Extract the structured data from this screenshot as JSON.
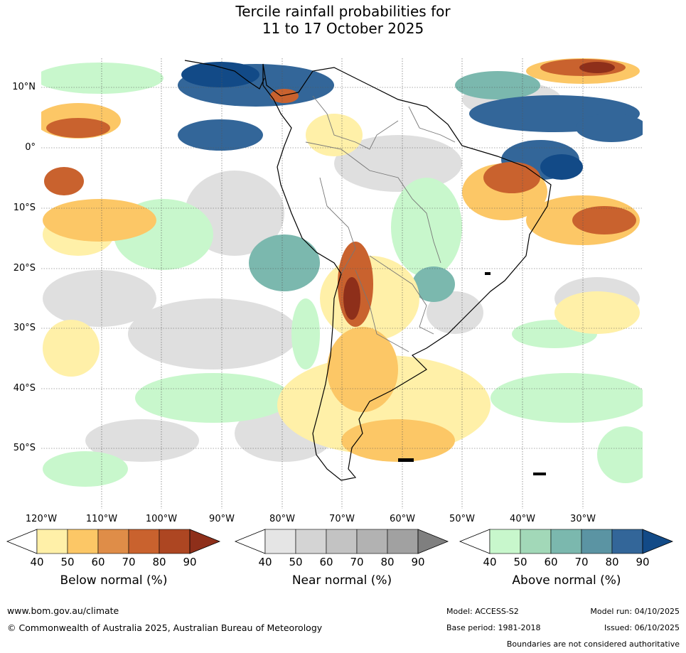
{
  "title_line1": "Tercile rainfall probabilities for",
  "title_line2": "11 to 17 October 2025",
  "map": {
    "lon_labels": [
      "120°W",
      "110°W",
      "100°W",
      "90°W",
      "80°W",
      "70°W",
      "60°W",
      "50°W",
      "40°W",
      "30°W"
    ],
    "lat_labels": [
      "10°N",
      "0°",
      "10°S",
      "20°S",
      "30°S",
      "40°S",
      "50°S"
    ]
  },
  "colorbars": [
    {
      "title": "Below normal (%)",
      "ticks": [
        "40",
        "50",
        "60",
        "70",
        "80",
        "90"
      ],
      "colors": [
        "#fff0a8",
        "#fcc766",
        "#df8d48",
        "#c9622e",
        "#ad4622",
        "#8e2f1a"
      ]
    },
    {
      "title": "Near normal (%)",
      "ticks": [
        "40",
        "50",
        "60",
        "70",
        "80",
        "90"
      ],
      "colors": [
        "#e5e5e5",
        "#d4d4d4",
        "#c3c3c3",
        "#b2b2b2",
        "#a1a1a1",
        "#7f7f7f"
      ]
    },
    {
      "title": "Above normal (%)",
      "ticks": [
        "40",
        "50",
        "60",
        "70",
        "80",
        "90"
      ],
      "colors": [
        "#c8f7cc",
        "#a2d8b8",
        "#7bb8ae",
        "#5b94a3",
        "#336699",
        "#124a87"
      ]
    }
  ],
  "footer": {
    "url": "www.bom.gov.au/climate",
    "copyright": "© Commonwealth of Australia 2025, Australian Bureau of Meteorology",
    "model": "Model: ACCESS-S2",
    "base_period": "Base period: 1981-2018",
    "model_run": "Model run: 04/10/2025",
    "issued": "Issued: 06/10/2025",
    "disclaimer": "Boundaries are not considered authoritative"
  }
}
